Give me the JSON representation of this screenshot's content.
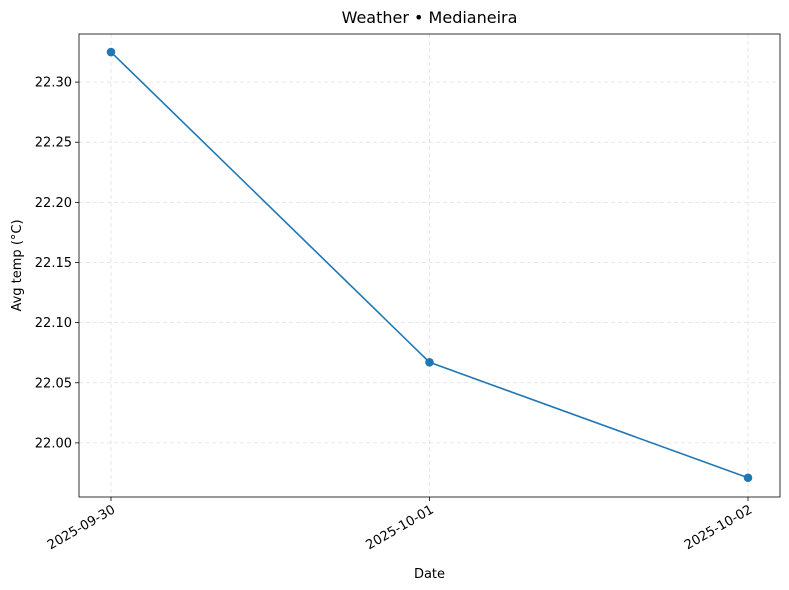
{
  "chart_data": {
    "type": "line",
    "title": "Weather • Medianeira",
    "xlabel": "Date",
    "ylabel": "Avg temp (°C)",
    "x": [
      "2025-09-30",
      "2025-10-01",
      "2025-10-02"
    ],
    "series": [
      {
        "values": [
          22.325,
          22.067,
          21.971
        ],
        "color": "#1f77b4"
      }
    ],
    "ylim": [
      21.955,
      22.34
    ],
    "yticks": [
      "22.00",
      "22.05",
      "22.10",
      "22.15",
      "22.20",
      "22.25",
      "22.30"
    ],
    "grid": true,
    "marker": "circle"
  }
}
